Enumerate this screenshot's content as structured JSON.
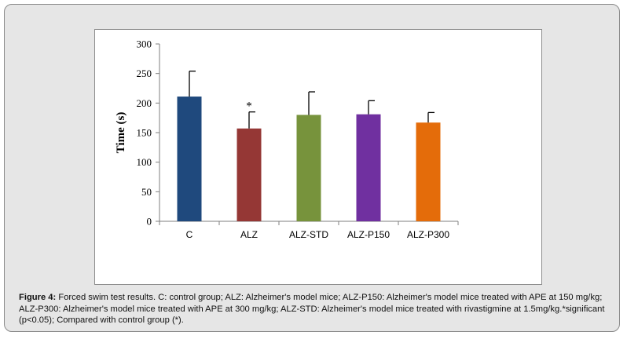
{
  "chart_data": {
    "type": "bar",
    "categories": [
      "C",
      "ALZ",
      "ALZ-STD",
      "ALZ-P150",
      "ALZ-P300"
    ],
    "values": [
      211,
      157,
      180,
      181,
      167
    ],
    "errors": [
      43,
      28,
      39,
      23,
      17
    ],
    "colors": [
      "#1f497d",
      "#953735",
      "#77933c",
      "#7030a0",
      "#e46c0a"
    ],
    "annotations": [
      "",
      "*",
      "",
      "",
      ""
    ],
    "ylabel": "Time (s)",
    "xlabel": "",
    "ylim": [
      0,
      300
    ],
    "yticks": [
      0,
      50,
      100,
      150,
      200,
      250,
      300
    ],
    "grid": false,
    "legend": "none"
  },
  "caption": {
    "label": "Figure 4:",
    "text": " Forced swim test results. C: control group; ALZ: Alzheimer's model mice; ALZ-P150: Alzheimer's model mice treated with APE at 150 mg/kg; ALZ-P300: Alzheimer's model mice treated with APE at 300 mg/kg; ALZ-STD: Alzheimer's model mice treated with rivastigmine at 1.5mg/kg.*significant (p<0.05); Compared with control group (*)."
  }
}
